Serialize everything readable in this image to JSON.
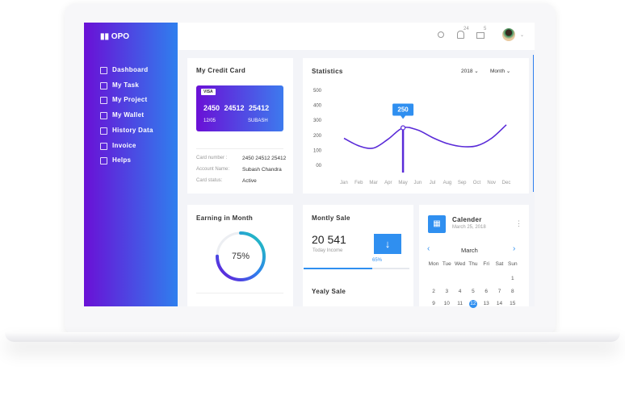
{
  "sidebar": {
    "logo": "OPO",
    "items": [
      "Dashboard",
      "My Task",
      "My Project",
      "My Wallet",
      "History Data",
      "Invoice",
      "Helps"
    ]
  },
  "topbar": {
    "notifications": "24",
    "messages": "5"
  },
  "credit_card": {
    "title": "My Credit Card",
    "brand": "VISA",
    "number": "2450 24512 25412",
    "expiry": "12/05",
    "holder": "SUBASH",
    "details": [
      {
        "label": "Card number :",
        "value": "2450 24512 25412"
      },
      {
        "label": "Account Name:",
        "value": "Subash Chandra"
      },
      {
        "label": "Card status:",
        "value": "Active"
      }
    ]
  },
  "statistics": {
    "type": "line",
    "title": "Statistics",
    "year": "2018",
    "period": "Month",
    "categories": [
      "Jan",
      "Feb",
      "Mar",
      "Apr",
      "May",
      "Jun",
      "Jul",
      "Aug",
      "Sep",
      "Oct",
      "Nov",
      "Dec"
    ],
    "values": [
      180,
      130,
      115,
      175,
      250,
      235,
      185,
      145,
      125,
      130,
      180,
      270
    ],
    "color": "#5a2bd8",
    "ylim": [
      0,
      500
    ],
    "yticks": [
      500,
      400,
      300,
      200,
      100,
      {
        "value": 0,
        "label": "00"
      }
    ],
    "annotation": {
      "value": 250,
      "label": "250"
    }
  },
  "earning": {
    "title": "Earning in Month",
    "value": 75,
    "value_label": "75%"
  },
  "monthly_sale": {
    "title": "Montly Sale",
    "amount": "20 541",
    "caption": "Today Income",
    "progress": 65,
    "progress_label": "65%"
  },
  "yearly_sale": {
    "title": "Yealy Sale"
  },
  "calendar": {
    "title": "Calender",
    "date": "March 25, 2018",
    "month": "March",
    "weekdays": [
      "Mon",
      "Tue",
      "Wed",
      "Thu",
      "Fri",
      "Sat",
      "Sun"
    ],
    "weeks": [
      [
        null,
        null,
        null,
        null,
        null,
        null,
        "1"
      ],
      [
        "2",
        "3",
        "4",
        "5",
        "6",
        "7",
        "8"
      ],
      [
        "9",
        "10",
        "11",
        "12",
        "13",
        "14",
        "15"
      ]
    ],
    "selected": "12"
  }
}
